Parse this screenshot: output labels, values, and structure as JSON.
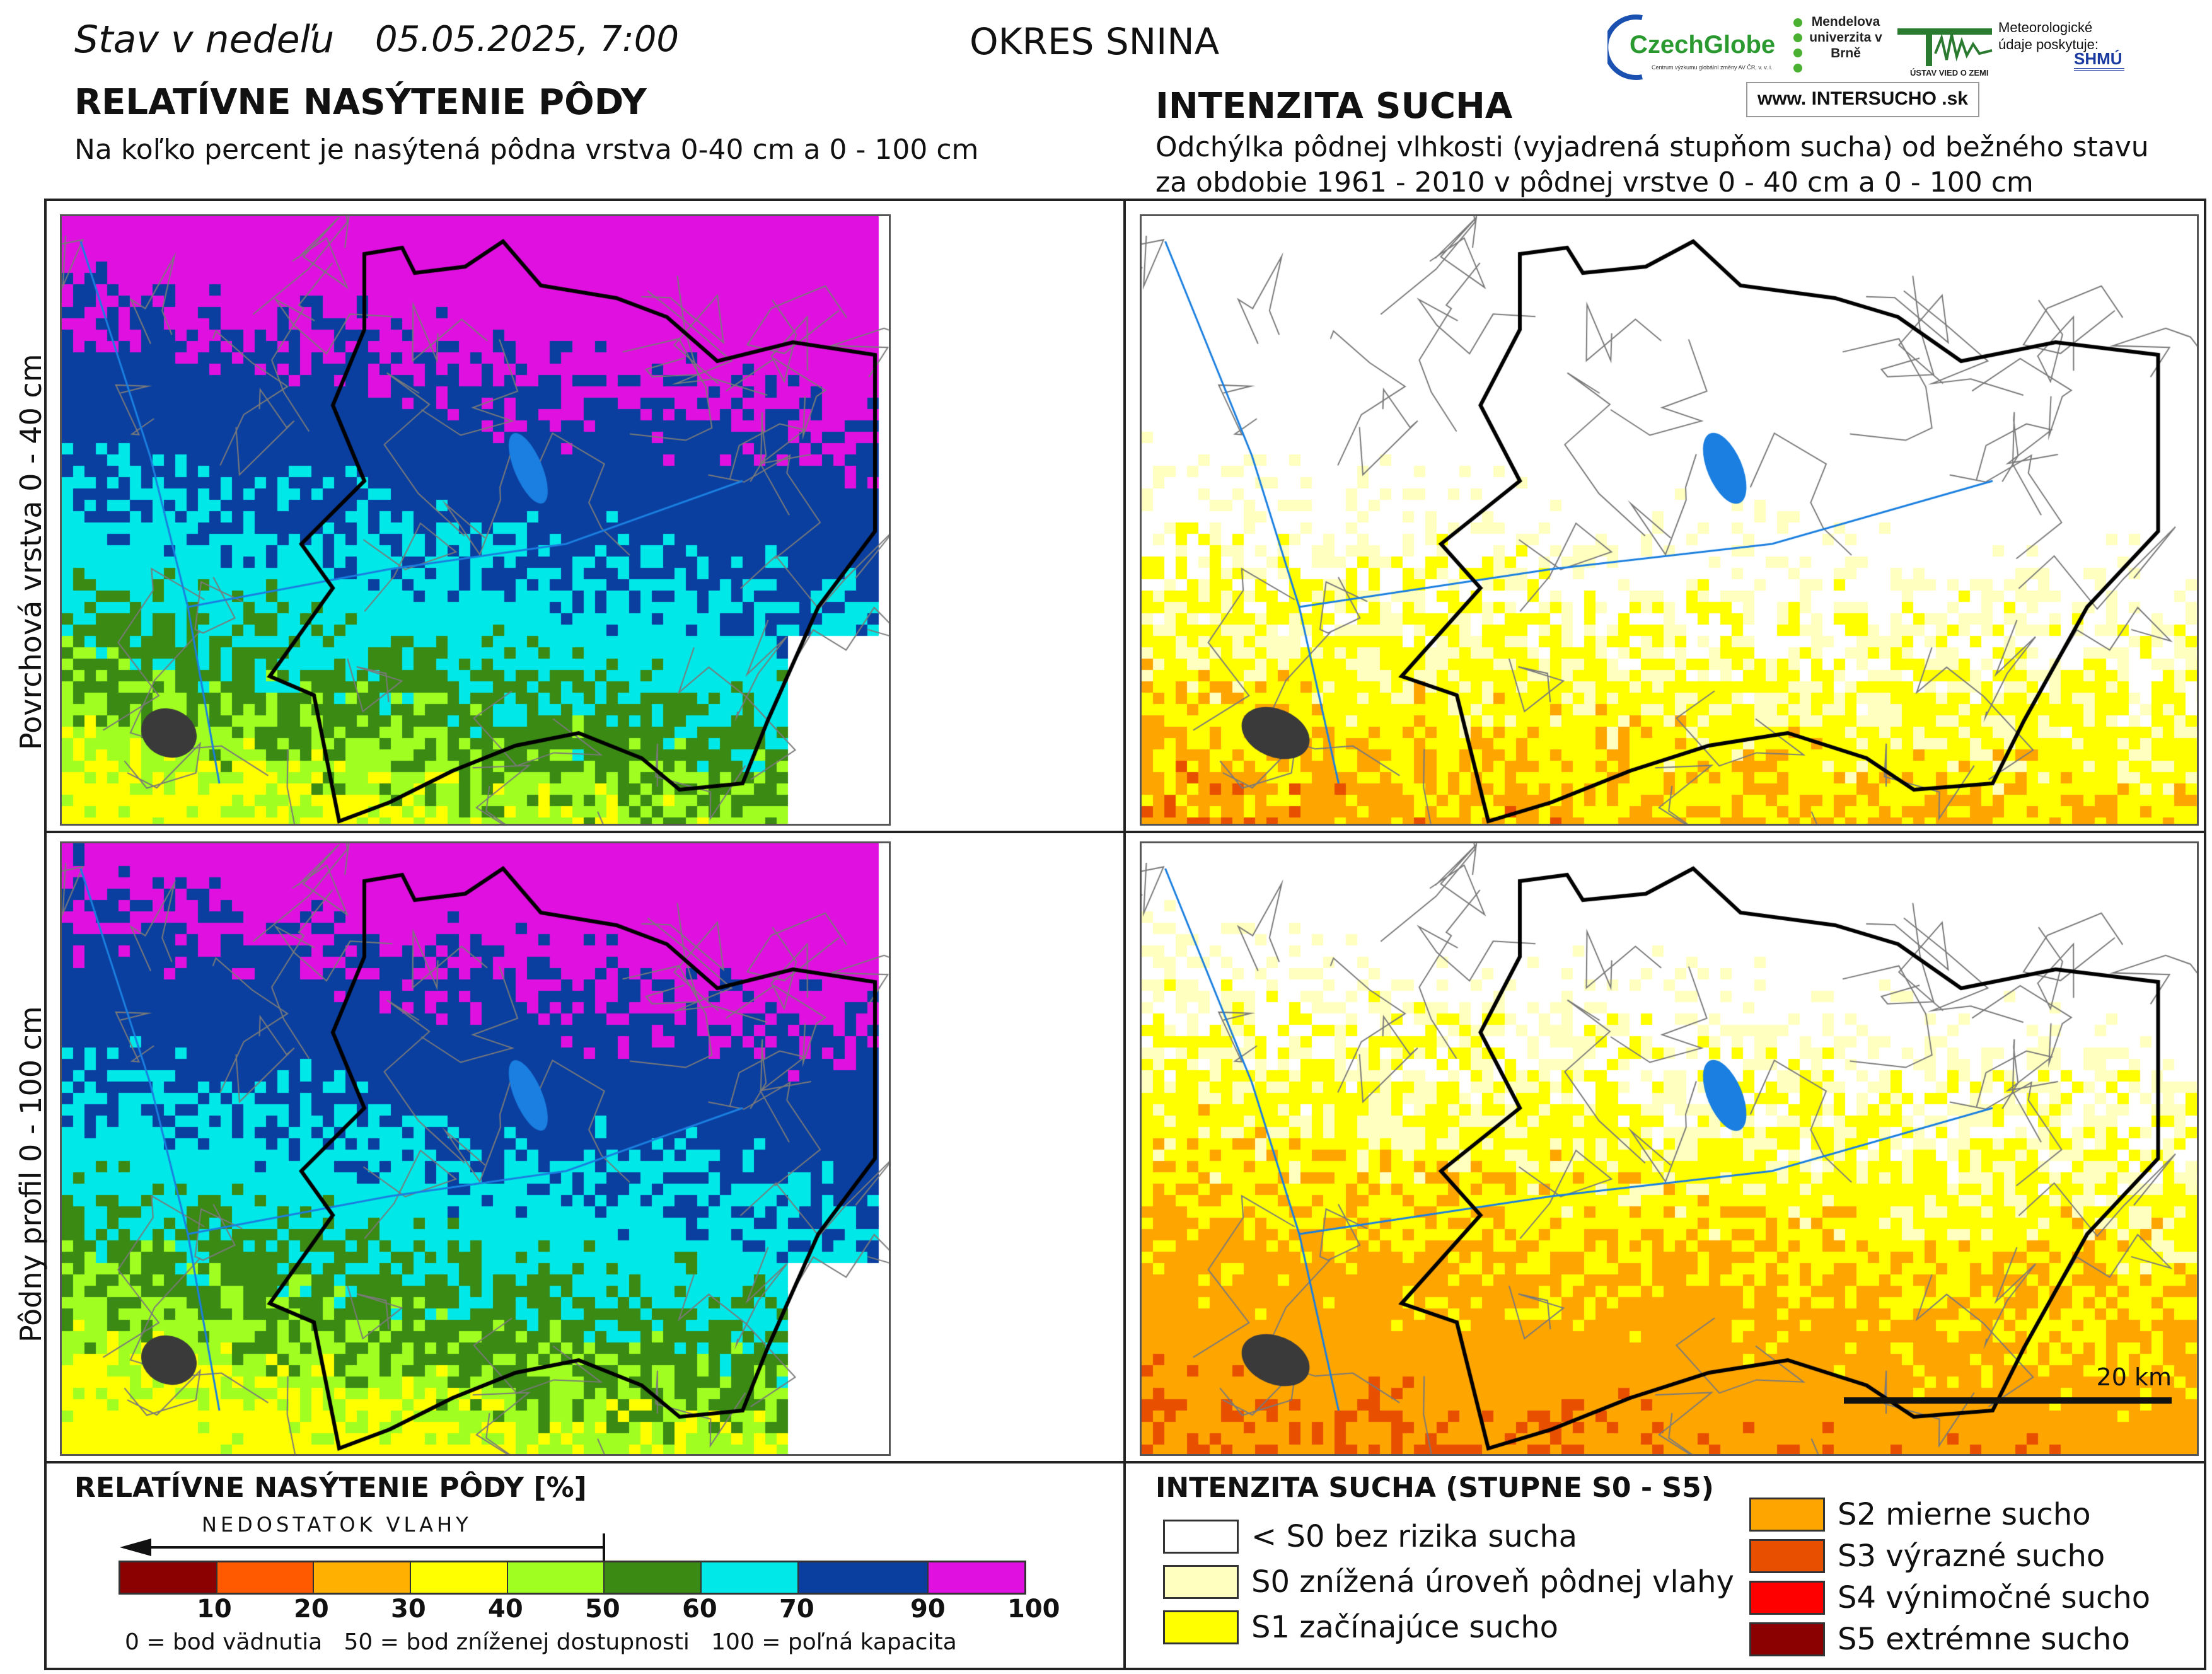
{
  "header": {
    "state_label": "Stav v nedeľu",
    "datetime": "05.05.2025, 7:00",
    "district": "OKRES  SNINA"
  },
  "left_section": {
    "title": "RELATÍVNE NASÝTENIE PÔDY",
    "subtitle": "Na koľko percent je nasýtená pôdna vrstva 0-40 cm a 0 - 100 cm"
  },
  "right_section": {
    "title": "INTENZITA SUCHA",
    "subtitle_line1": "Odchýlka pôdnej vlhkosti (vyjadrená stupňom sucha) od bežného stavu",
    "subtitle_line2": "za obdobie 1961 - 2010 v pôdnej vrstve 0 - 40 cm a 0 - 100 cm"
  },
  "rows": {
    "top": "Povrchová vrstva 0 - 40 cm",
    "bottom": "Pôdny profil 0 - 100 cm"
  },
  "logos": {
    "czechglobe": "CzechGlobe",
    "czechglobe_sub": "Centrum výzkumu globální změny AV ČR, v. v. i.",
    "mendel": "Mendelova univerzita v Brně",
    "uvoz": "ÚSTAV VIED O ZEMI",
    "meteo": "Meteorologické údaje poskytuje:",
    "shmu": "SHMÚ",
    "web": "www. INTERSUCHO .sk"
  },
  "scale_bar": "20 km",
  "saturation_legend": {
    "title": "RELATÍVNE NASÝTENIE PÔDY [%]",
    "deficit_label": "NEDOSTATOK VLAHY",
    "colors": [
      "#8b0000",
      "#ff5a00",
      "#ffb000",
      "#ffff00",
      "#a0ff20",
      "#3a8a14",
      "#00e8e8",
      "#0a3fa0",
      "#e010e0"
    ],
    "ticks": [
      "10",
      "20",
      "30",
      "40",
      "50",
      "60",
      "70",
      "90",
      "100"
    ],
    "footnote": "0 = bod vädnutia   50 = bod zníženej dostupnosti   100 = poľná kapacita"
  },
  "drought_legend": {
    "title": "INTENZITA SUCHA (STUPNE S0 - S5)",
    "items_left": [
      {
        "label": "< S0 bez rizika sucha",
        "color": "#ffffff"
      },
      {
        "label": "S0 znížená úroveň pôdnej vlahy",
        "color": "#ffffc0"
      },
      {
        "label": "S1 začínajúce sucho",
        "color": "#ffff00"
      }
    ],
    "items_right": [
      {
        "label": "S2 mierne sucho",
        "color": "#ffa500"
      },
      {
        "label": "S3 výrazné sucho",
        "color": "#e85000"
      },
      {
        "label": "S4 výnimočné sucho",
        "color": "#ff0000"
      },
      {
        "label": "S5 extrémne sucho",
        "color": "#8b0000"
      }
    ]
  }
}
